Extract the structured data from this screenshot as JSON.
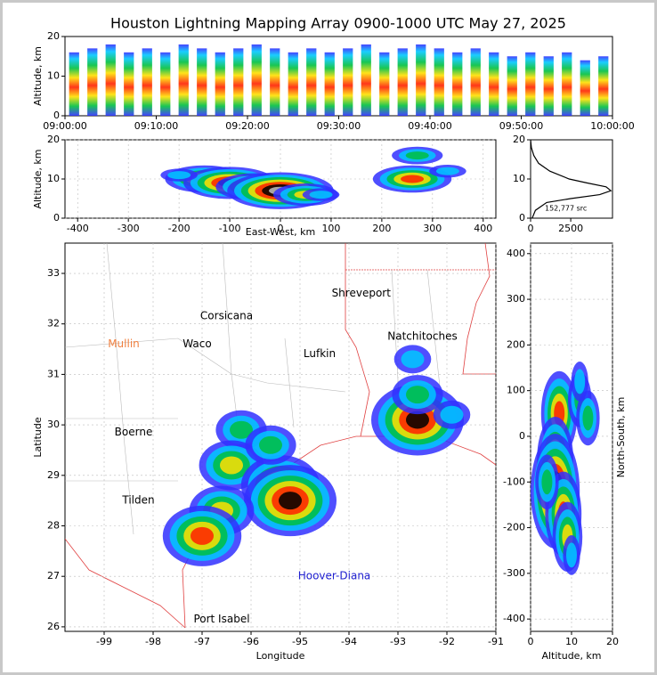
{
  "title": "Houston Lightning Mapping Array 0900-1000 UTC May 27, 2025",
  "chart_data": [
    {
      "type": "bar",
      "ylabel": "Altitude, km",
      "xlim": [
        "09:00:00",
        "10:00:00"
      ],
      "ylim": [
        0,
        20
      ],
      "yticks": [
        0,
        10,
        20
      ],
      "xticks": [
        "09:00:00",
        "09:10:00",
        "09:20:00",
        "09:30:00",
        "09:40:00",
        "09:50:00",
        "10:00:00"
      ],
      "x": [
        "09:01:00",
        "09:03:00",
        "09:05:00",
        "09:07:00",
        "09:09:00",
        "09:11:00",
        "09:13:00",
        "09:15:00",
        "09:17:00",
        "09:19:00",
        "09:21:00",
        "09:23:00",
        "09:25:00",
        "09:27:00",
        "09:29:00",
        "09:31:00",
        "09:33:00",
        "09:35:00",
        "09:37:00",
        "09:39:00",
        "09:41:00",
        "09:43:00",
        "09:45:00",
        "09:47:00",
        "09:49:00",
        "09:51:00",
        "09:53:00",
        "09:55:00",
        "09:57:00",
        "09:59:00"
      ],
      "values": [
        16,
        17,
        18,
        16,
        17,
        16,
        18,
        17,
        16,
        17,
        18,
        17,
        16,
        17,
        16,
        17,
        18,
        16,
        17,
        18,
        17,
        16,
        17,
        16,
        15,
        16,
        15,
        16,
        14,
        15
      ]
    },
    {
      "type": "scatter",
      "xlabel": "East-West, km",
      "ylabel": "Altitude, km",
      "grid": true,
      "xlim": [
        -425,
        425
      ],
      "ylim": [
        0,
        20
      ],
      "xticks": [
        -400,
        -300,
        -200,
        -100,
        0,
        100,
        200,
        300,
        400
      ],
      "yticks": [
        0,
        10,
        20
      ],
      "colors": [
        "#3030ff",
        "#00c8ff",
        "#00c040",
        "#ffe000",
        "#ff2000",
        "#000000",
        "#c0c0c0"
      ],
      "x": [
        -150,
        -100,
        -50,
        0,
        50,
        80,
        -200,
        260,
        270,
        330
      ],
      "y": [
        10,
        9,
        8,
        7,
        6,
        6,
        11,
        10,
        16,
        12
      ],
      "sizes": [
        5,
        6,
        5,
        7,
        4,
        2,
        2,
        5,
        3,
        2
      ]
    },
    {
      "type": "line",
      "annotation": "152,777 src",
      "xlim": [
        0,
        5100
      ],
      "ylim": [
        0,
        20
      ],
      "xticks": [
        0,
        2500
      ],
      "yticks": [
        0,
        10,
        20
      ],
      "y": [
        0,
        2,
        4,
        5,
        6,
        7,
        8,
        9,
        10,
        12,
        14,
        16,
        18,
        20
      ],
      "values": [
        100,
        300,
        1000,
        2500,
        4300,
        5000,
        4700,
        3500,
        2400,
        1200,
        500,
        200,
        50,
        0
      ]
    },
    {
      "type": "scatter",
      "xlabel": "Longitude",
      "ylabel": "Latitude",
      "grid": true,
      "xlim": [
        -99.8,
        -91
      ],
      "ylim": [
        25.91,
        33.6
      ],
      "xticks": [
        -99,
        -98,
        -97,
        -96,
        -95,
        -94,
        -93,
        -92,
        -91
      ],
      "yticks": [
        26,
        27,
        28,
        29,
        30,
        31,
        32,
        33
      ],
      "colors": [
        "#3030ff",
        "#00c8ff",
        "#00c040",
        "#ffe000",
        "#ff2000",
        "#000000",
        "#c0c0c0"
      ],
      "x": [
        -96.2,
        -96.4,
        -95.4,
        -95.2,
        -96.6,
        -97.0,
        -95.6,
        -92.6,
        -92.6,
        -92.7,
        -91.9
      ],
      "y": [
        29.9,
        29.2,
        28.8,
        28.5,
        28.3,
        27.8,
        29.6,
        30.1,
        30.6,
        31.3,
        30.2
      ],
      "sizes": [
        3,
        4,
        5,
        6,
        4,
        5,
        3,
        6,
        3,
        2,
        2
      ],
      "places": [
        {
          "name": "Shreveport",
          "lon": -93.75,
          "lat": 32.6,
          "color": "#000000"
        },
        {
          "name": "Corsicana",
          "lon": -96.5,
          "lat": 32.15,
          "color": "#000000"
        },
        {
          "name": "Mullin",
          "lon": -98.6,
          "lat": 31.6,
          "color": "#f08040"
        },
        {
          "name": "Waco",
          "lon": -97.1,
          "lat": 31.6,
          "color": "#000000"
        },
        {
          "name": "Lufkin",
          "lon": -94.6,
          "lat": 31.4,
          "color": "#000000"
        },
        {
          "name": "Natchitoches",
          "lon": -92.5,
          "lat": 31.75,
          "color": "#000000"
        },
        {
          "name": "Boerne",
          "lon": -98.4,
          "lat": 29.85,
          "color": "#000000"
        },
        {
          "name": "Tilden",
          "lon": -98.3,
          "lat": 28.5,
          "color": "#000000"
        },
        {
          "name": "Port Isabel",
          "lon": -96.6,
          "lat": 26.15,
          "color": "#000000"
        },
        {
          "name": "Hoover-Diana",
          "lon": -94.3,
          "lat": 27.0,
          "color": "#2020d0"
        }
      ]
    },
    {
      "type": "scatter",
      "xlabel": "Altitude, km",
      "ylabel": "North-South, km",
      "grid": true,
      "xlim": [
        0,
        20
      ],
      "ylim": [
        -427,
        423
      ],
      "xticks": [
        0,
        10,
        20
      ],
      "yticks": [
        -400,
        -300,
        -200,
        -100,
        0,
        100,
        200,
        300,
        400
      ],
      "colors": [
        "#3030ff",
        "#00c8ff",
        "#00c040",
        "#ffe000",
        "#ff2000",
        "#000000",
        "#c0c0c0"
      ],
      "x": [
        7,
        12,
        6,
        6,
        8,
        9,
        10,
        12,
        14,
        4
      ],
      "y": [
        50,
        80,
        -50,
        -120,
        -170,
        -220,
        -260,
        120,
        40,
        -100
      ],
      "sizes": [
        5,
        3,
        5,
        7,
        5,
        4,
        2,
        2,
        3,
        3
      ]
    }
  ]
}
